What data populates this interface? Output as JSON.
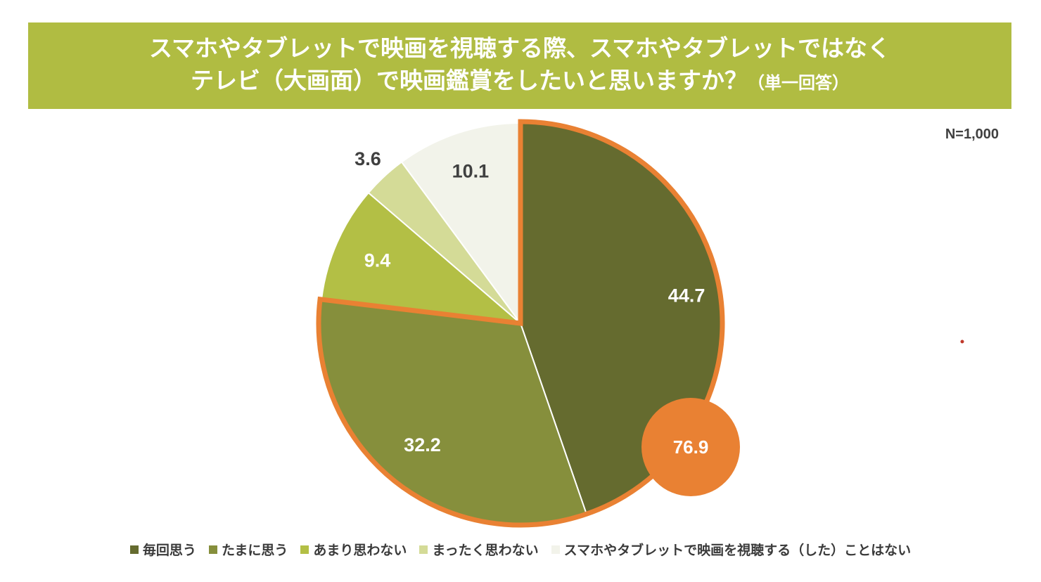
{
  "title": {
    "line1": "スマホやタブレットで映画を視聴する際、スマホやタブレットではなく",
    "line2": "テレビ（大画面）で映画鑑賞をしたいと思いますか？",
    "note": "（単一回答）"
  },
  "sample_size": "N=1,000",
  "highlight": {
    "value": "76.9",
    "color": "#e98133"
  },
  "chart_data": {
    "type": "pie",
    "title": "スマホやタブレットで映画を視聴する際、スマホやタブレットではなくテレビ（大画面）で映画鑑賞をしたいと思いますか？（単一回答）",
    "unit": "%",
    "slices": [
      {
        "label": "毎回思う",
        "value": 44.7,
        "display": "44.7",
        "color": "#656b2f",
        "label_color": "#ffffff"
      },
      {
        "label": "たまに思う",
        "value": 32.2,
        "display": "32.2",
        "color": "#868f3c",
        "label_color": "#ffffff"
      },
      {
        "label": "あまり思わない",
        "value": 9.4,
        "display": "9.4",
        "color": "#b3bf45",
        "label_color": "#ffffff"
      },
      {
        "label": "まったく思わない",
        "value": 3.6,
        "display": "3.6",
        "color": "#d4db97",
        "label_color": "#404040"
      },
      {
        "label": "スマホやタブレットで映画を視聴する（した）ことはない",
        "value": 10.1,
        "display": "10.1",
        "color": "#f2f3ea",
        "label_color": "#404040"
      }
    ],
    "highlighted_total": 76.9,
    "highlighted_slices": [
      "毎回思う",
      "たまに思う"
    ],
    "legend_position": "bottom"
  }
}
